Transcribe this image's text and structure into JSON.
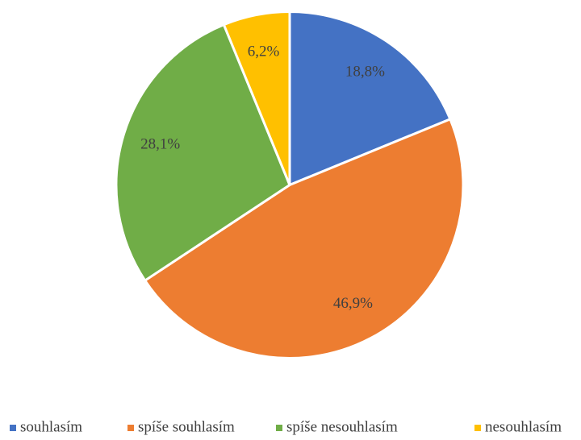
{
  "chart_data": {
    "type": "pie",
    "categories": [
      "souhlasím",
      "spíše souhlasím",
      "spíše nesouhlasím",
      "nesouhlasím"
    ],
    "values": [
      18.8,
      46.9,
      28.1,
      6.2
    ],
    "value_labels": [
      "18,8%",
      "46,9%",
      "28,1%",
      "6,2%"
    ],
    "colors": [
      "#4472c4",
      "#ed7d31",
      "#70ad47",
      "#ffc000"
    ],
    "legend": "bottom"
  }
}
